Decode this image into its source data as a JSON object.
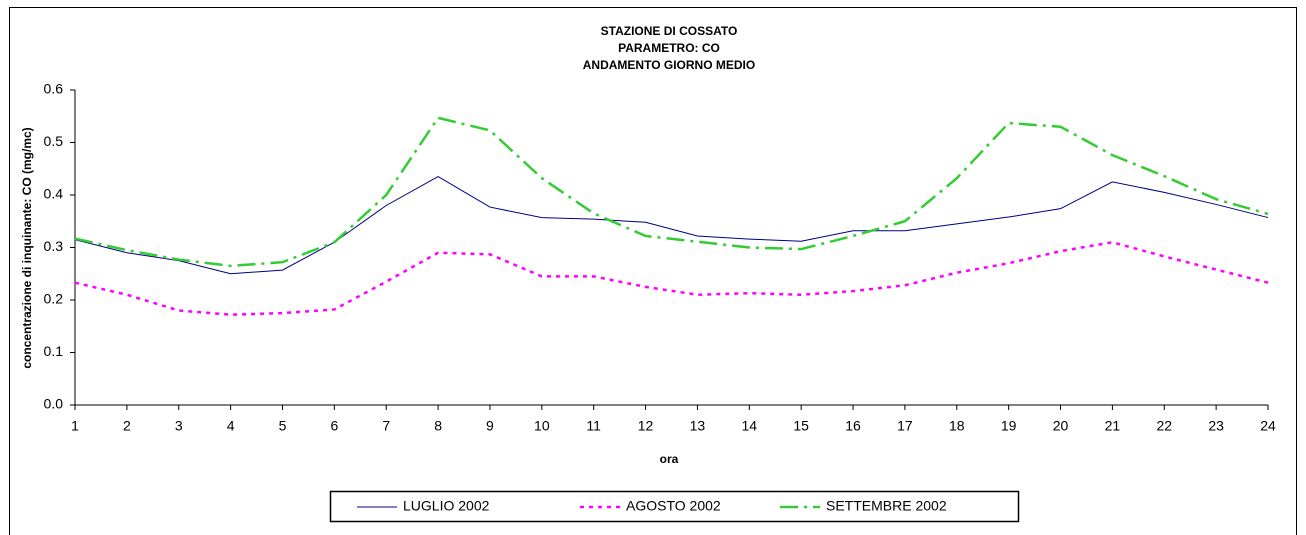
{
  "chart_data": {
    "type": "line",
    "title": [
      "STAZIONE DI COSSATO",
      "PARAMETRO: CO",
      "ANDAMENTO GIORNO MEDIO"
    ],
    "x_label": "ora",
    "y_label": "concentrazione di inquinante: CO (mg/mc)",
    "categories": [
      "1",
      "2",
      "3",
      "4",
      "5",
      "6",
      "7",
      "8",
      "9",
      "10",
      "11",
      "12",
      "13",
      "14",
      "15",
      "16",
      "17",
      "18",
      "19",
      "20",
      "21",
      "22",
      "23",
      "24"
    ],
    "series": [
      {
        "name": "LUGLIO 2002",
        "color": "#000080",
        "dash": "solid",
        "values": [
          0.315,
          0.29,
          0.275,
          0.25,
          0.257,
          0.31,
          0.38,
          0.435,
          0.377,
          0.357,
          0.354,
          0.348,
          0.322,
          0.316,
          0.312,
          0.332,
          0.332,
          0.345,
          0.358,
          0.374,
          0.425,
          0.405,
          0.382,
          0.357
        ]
      },
      {
        "name": "AGOSTO 2002",
        "color": "#ff00ff",
        "dash": "dot",
        "values": [
          0.233,
          0.21,
          0.18,
          0.172,
          0.175,
          0.182,
          0.235,
          0.29,
          0.287,
          0.245,
          0.245,
          0.225,
          0.21,
          0.213,
          0.21,
          0.217,
          0.228,
          0.252,
          0.27,
          0.293,
          0.31,
          0.283,
          0.258,
          0.233
        ]
      },
      {
        "name": "SETTEMBRE 2002",
        "color": "#33cc33",
        "dash": "dashdot",
        "values": [
          0.317,
          0.295,
          0.277,
          0.265,
          0.272,
          0.31,
          0.4,
          0.547,
          0.523,
          0.432,
          0.365,
          0.322,
          0.311,
          0.3,
          0.297,
          0.322,
          0.35,
          0.432,
          0.537,
          0.53,
          0.476,
          0.436,
          0.392,
          0.364
        ]
      }
    ],
    "ylim": [
      0,
      0.6
    ],
    "yticks": [
      {
        "value": 0,
        "label": "0.0"
      },
      0.1,
      0.2,
      0.3,
      0.4,
      0.5,
      0.6
    ],
    "grid": false,
    "legend": "bottom"
  }
}
